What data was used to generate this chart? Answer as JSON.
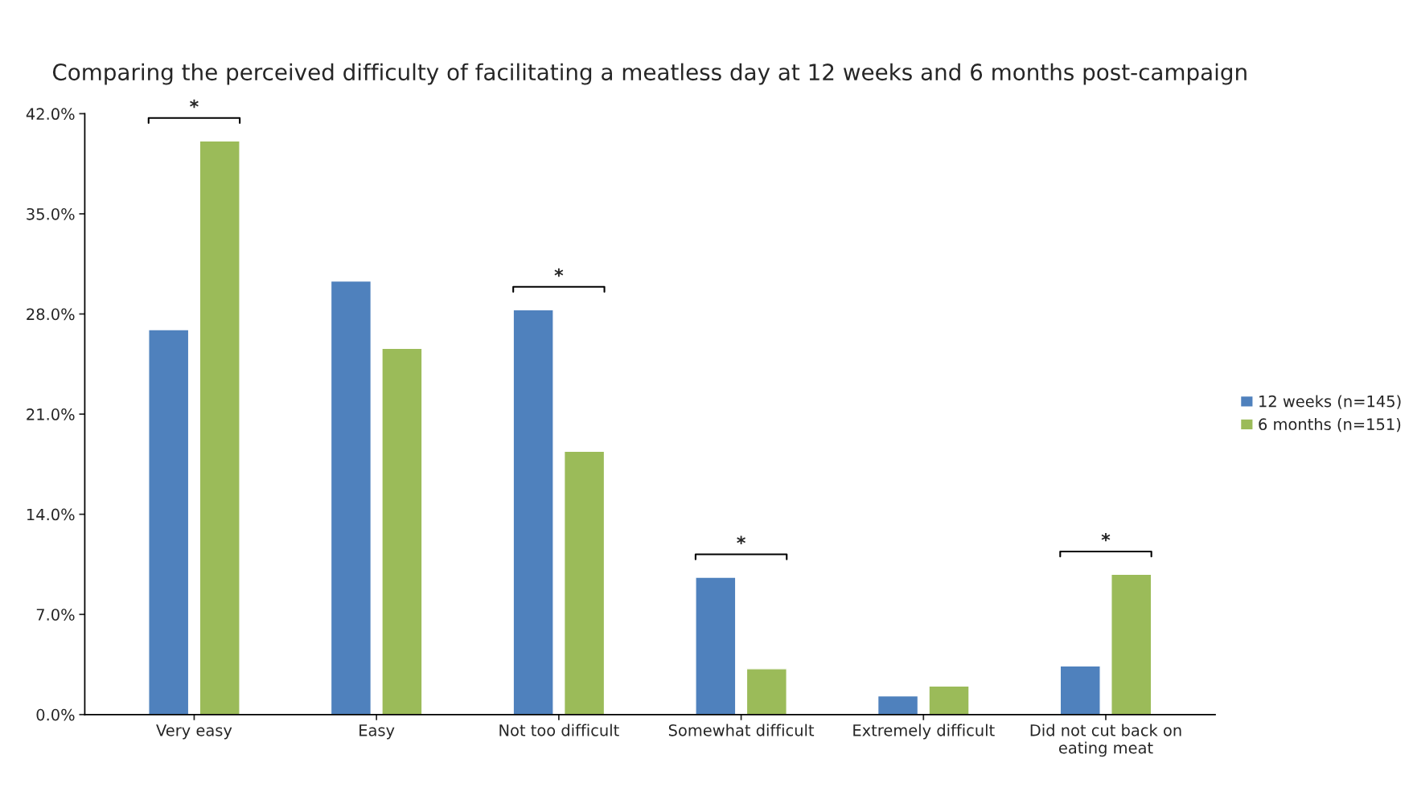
{
  "chart_data": {
    "type": "bar",
    "title": "Comparing the perceived difficulty of facilitating a meatless day at 12 weeks and 6 months post-campaign",
    "categories": [
      "Very easy",
      "Easy",
      "Not too difficult",
      "Somewhat difficult",
      "Extremely difficult",
      "Did not cut back on eating meat"
    ],
    "series": [
      {
        "name": "12 weeks (n=145)",
        "color": "#4f81bd",
        "values": [
          26.9,
          30.3,
          28.3,
          9.6,
          1.3,
          3.4
        ]
      },
      {
        "name": "6 months (n=151)",
        "color": "#9bbb59",
        "values": [
          40.1,
          25.6,
          18.4,
          3.2,
          2.0,
          9.8
        ]
      }
    ],
    "ylim": [
      0,
      42
    ],
    "yticks": [
      {
        "value": 0,
        "label": "0.0%"
      },
      {
        "value": 7,
        "label": "7.0%"
      },
      {
        "value": 14,
        "label": "14.0%"
      },
      {
        "value": 21,
        "label": "21.0%"
      },
      {
        "value": 28,
        "label": "28.0%"
      },
      {
        "value": 35,
        "label": "35.0%"
      },
      {
        "value": 42,
        "label": "42.0%"
      }
    ],
    "annotations": [
      "*",
      "*",
      "*",
      "*"
    ],
    "grid": false,
    "legend": "right"
  }
}
